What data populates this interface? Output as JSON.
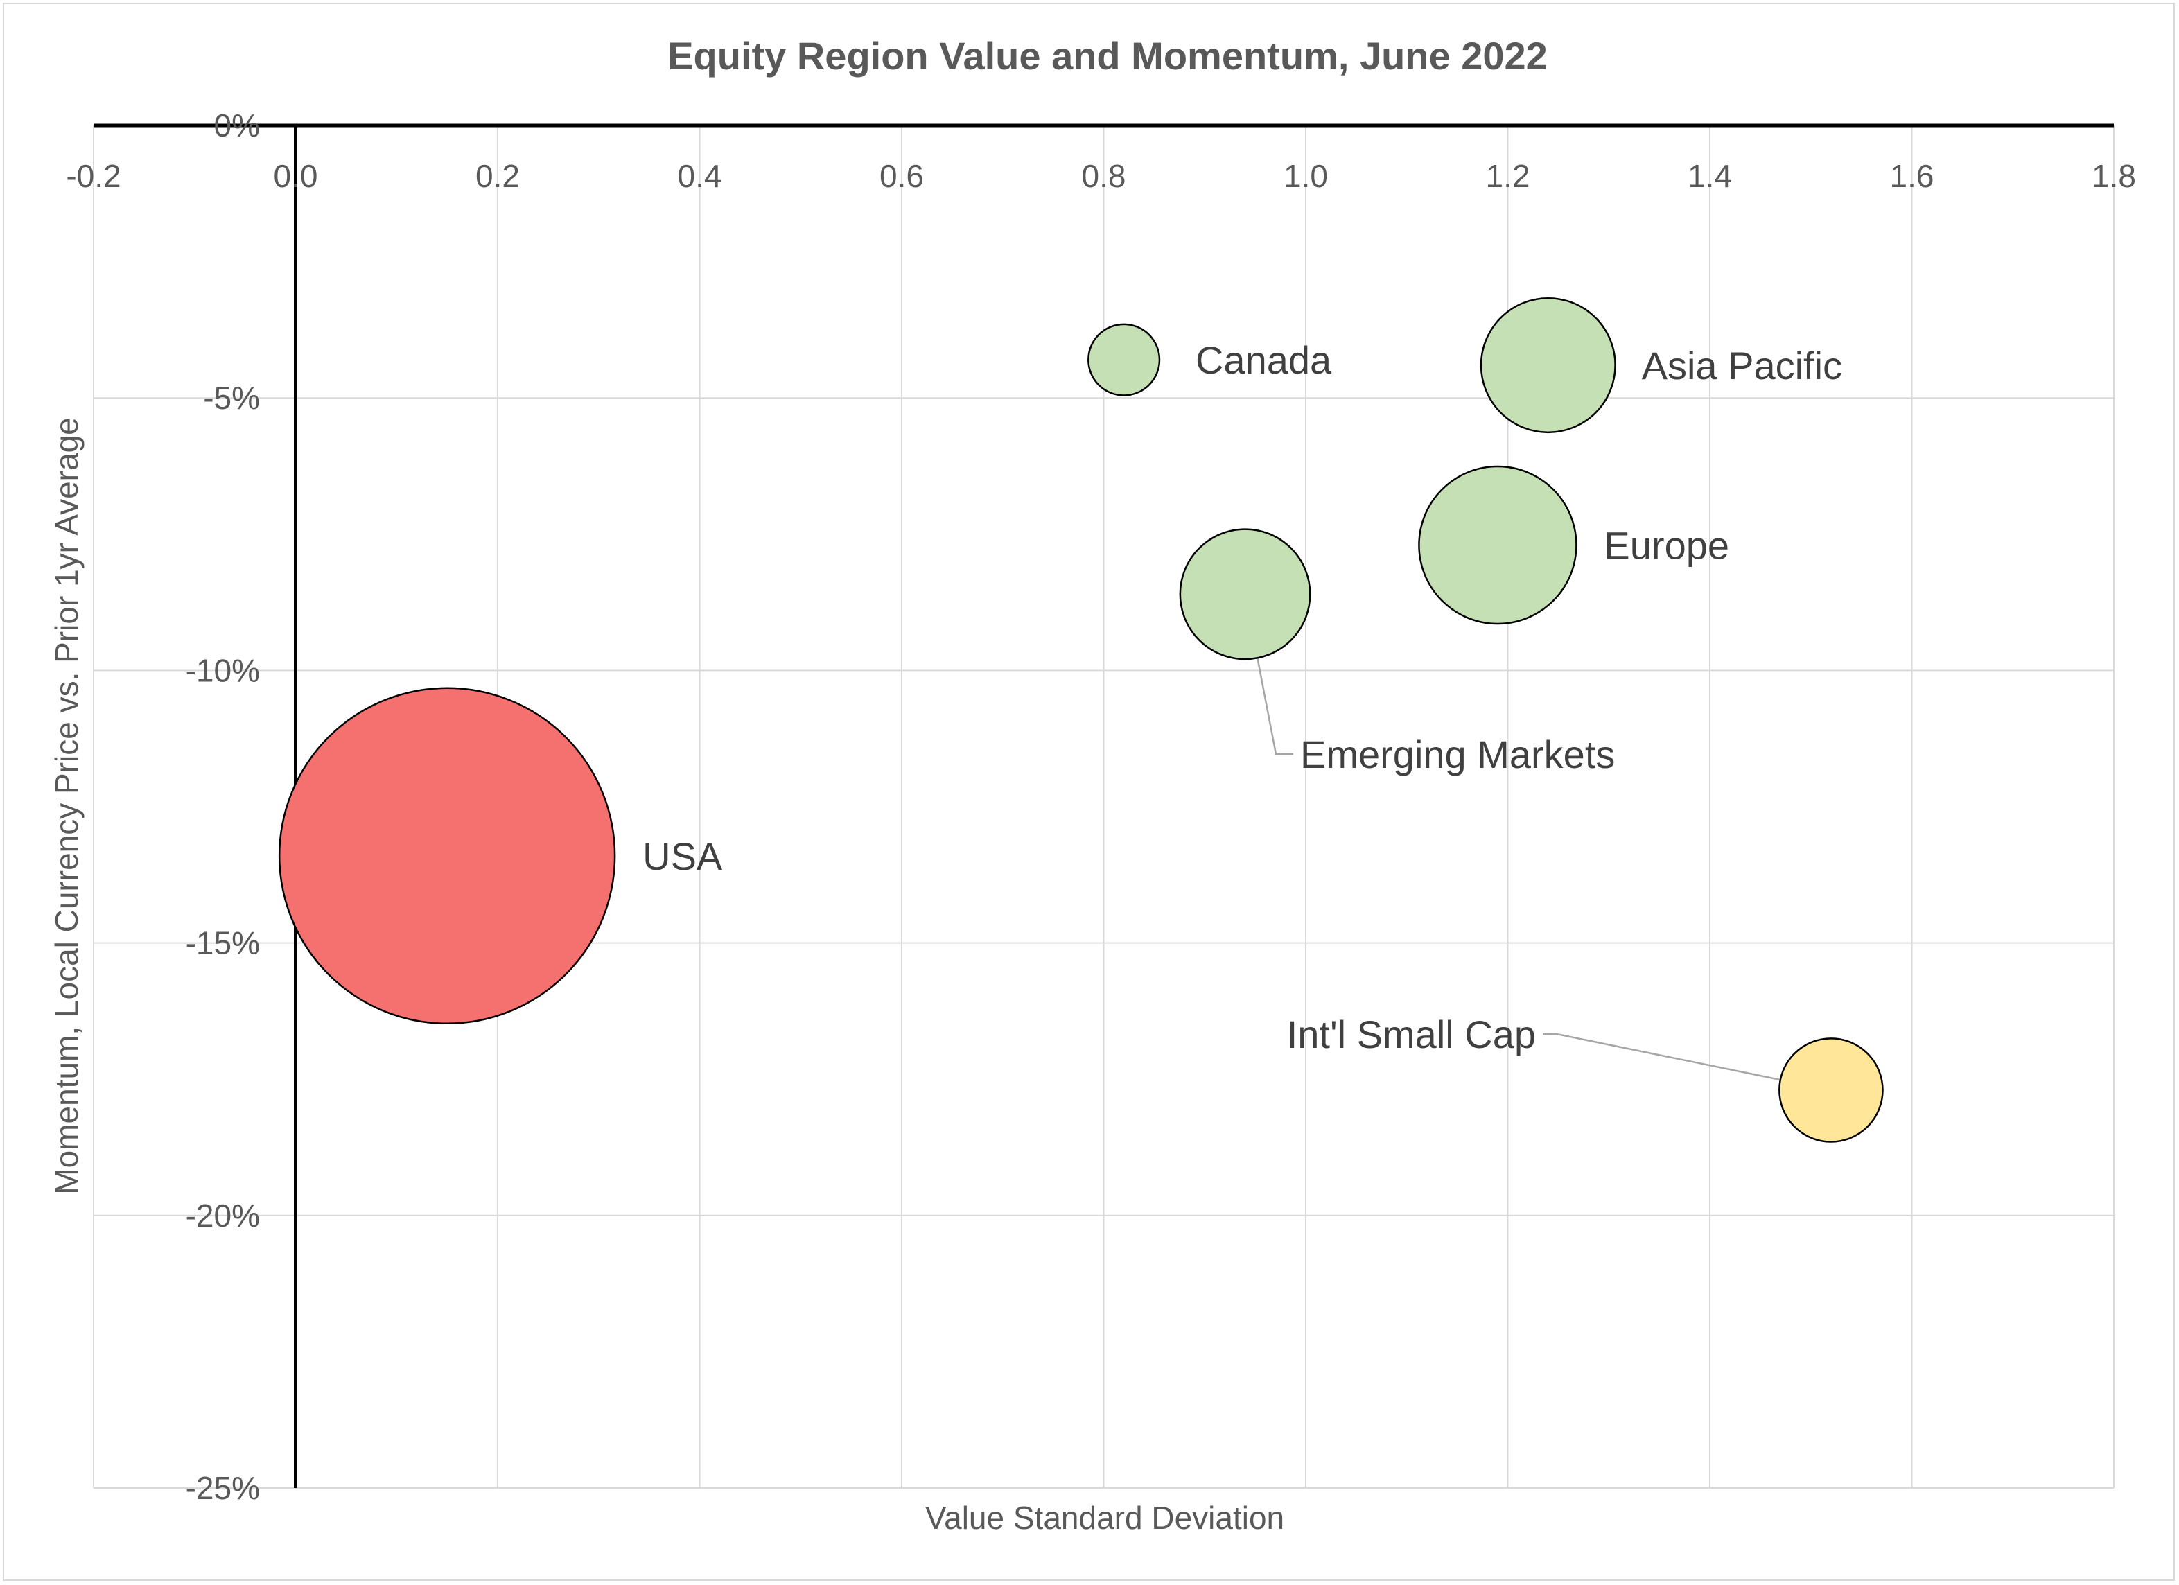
{
  "chart_data": {
    "type": "bubble",
    "title": "Equity Region Value and Momentum, June 2022",
    "xlabel": "Value Standard Deviation",
    "ylabel": "Momentum, Local Currency Price vs. Prior 1yr Average",
    "xlim": [
      -0.2,
      1.8
    ],
    "ylim": [
      -0.25,
      0.0
    ],
    "x_ticks": [
      -0.2,
      0.0,
      0.2,
      0.4,
      0.6,
      0.8,
      1.0,
      1.2,
      1.4,
      1.6,
      1.8
    ],
    "x_tick_labels": [
      "-0.2",
      "0.0",
      "0.2",
      "0.4",
      "0.6",
      "0.8",
      "1.0",
      "1.2",
      "1.4",
      "1.6",
      "1.8"
    ],
    "y_ticks": [
      0.0,
      -0.05,
      -0.1,
      -0.15,
      -0.2,
      -0.25
    ],
    "y_tick_labels": [
      "0%",
      "-5%",
      "-10%",
      "-15%",
      "-20%",
      "-25%"
    ],
    "x_axis_position": "top",
    "grid": true,
    "points": [
      {
        "label": "USA",
        "x": 0.15,
        "y": -0.134,
        "size": 100,
        "color": "#f4716f"
      },
      {
        "label": "Canada",
        "x": 0.82,
        "y": -0.043,
        "size": 4.5,
        "color": "#c5e0b4"
      },
      {
        "label": "Asia Pacific",
        "x": 1.24,
        "y": -0.044,
        "size": 16,
        "color": "#c5e0b4"
      },
      {
        "label": "Europe",
        "x": 1.19,
        "y": -0.077,
        "size": 22,
        "color": "#c5e0b4"
      },
      {
        "label": "Emerging Markets",
        "x": 0.94,
        "y": -0.086,
        "size": 15,
        "color": "#c5e0b4"
      },
      {
        "label": "Int'l Small Cap",
        "x": 1.52,
        "y": -0.177,
        "size": 9.5,
        "color": "#ffe699"
      }
    ]
  }
}
